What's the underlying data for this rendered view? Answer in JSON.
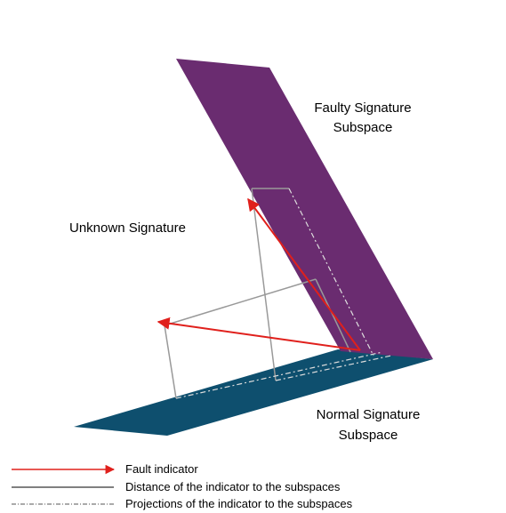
{
  "labels": {
    "faulty": [
      "Faulty Signature",
      "Subspace"
    ],
    "unknown": "Unknown Signature",
    "normal": [
      "Normal Signature",
      "Subspace"
    ]
  },
  "legend": [
    "Fault indicator",
    "Distance of the indicator to the subspaces",
    "Projections of the indicator to the subspaces"
  ]
}
